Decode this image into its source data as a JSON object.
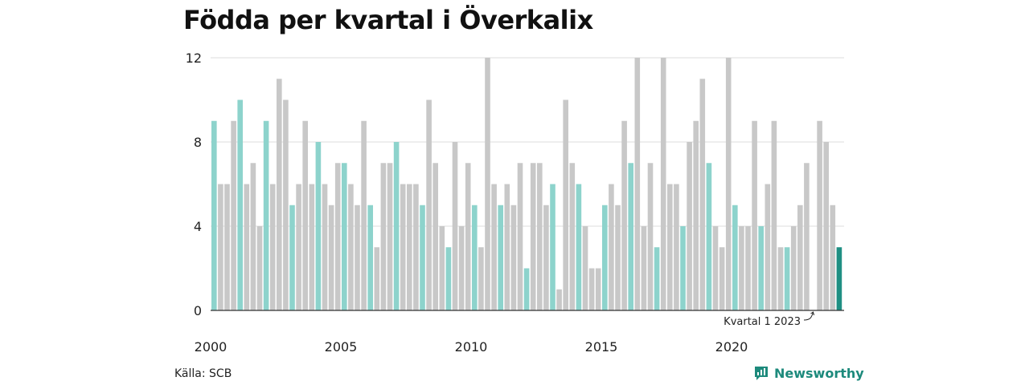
{
  "title": "Födda per kvartal i Överkalix",
  "source": "Källa: SCB",
  "brand": "Newsworthy",
  "colors": {
    "q1": "#8dd3cc",
    "other": "#c8c8c8",
    "highlight": "#1f8f83",
    "grid": "#dddddd",
    "axis": "#333333",
    "brand": "#1d8a7c"
  },
  "chart_data": {
    "type": "bar",
    "title": "Födda per kvartal i Överkalix",
    "xlabel": "",
    "ylabel": "",
    "ylim": [
      0,
      12
    ],
    "y_ticks": [
      0,
      4,
      8,
      12
    ],
    "x_ticks": [
      "2000",
      "2005",
      "2010",
      "2015",
      "2020"
    ],
    "start_year": 2000,
    "grid": true,
    "legend": "none",
    "highlight_label": "Kvartal 1 2023",
    "values": [
      9,
      6,
      6,
      9,
      10,
      6,
      7,
      4,
      9,
      6,
      11,
      10,
      5,
      6,
      9,
      6,
      8,
      6,
      5,
      7,
      7,
      6,
      5,
      9,
      5,
      3,
      7,
      7,
      8,
      6,
      6,
      6,
      5,
      10,
      7,
      4,
      3,
      8,
      4,
      7,
      5,
      3,
      12,
      6,
      5,
      6,
      5,
      7,
      2,
      7,
      7,
      5,
      6,
      1,
      10,
      7,
      6,
      4,
      2,
      2,
      5,
      6,
      5,
      9,
      7,
      12,
      4,
      7,
      3,
      12,
      6,
      6,
      4,
      8,
      9,
      11,
      7,
      4,
      3,
      12,
      5,
      4,
      4,
      9,
      4,
      6,
      9,
      3,
      3,
      4,
      5,
      7,
      0,
      9,
      8,
      5,
      3
    ]
  }
}
